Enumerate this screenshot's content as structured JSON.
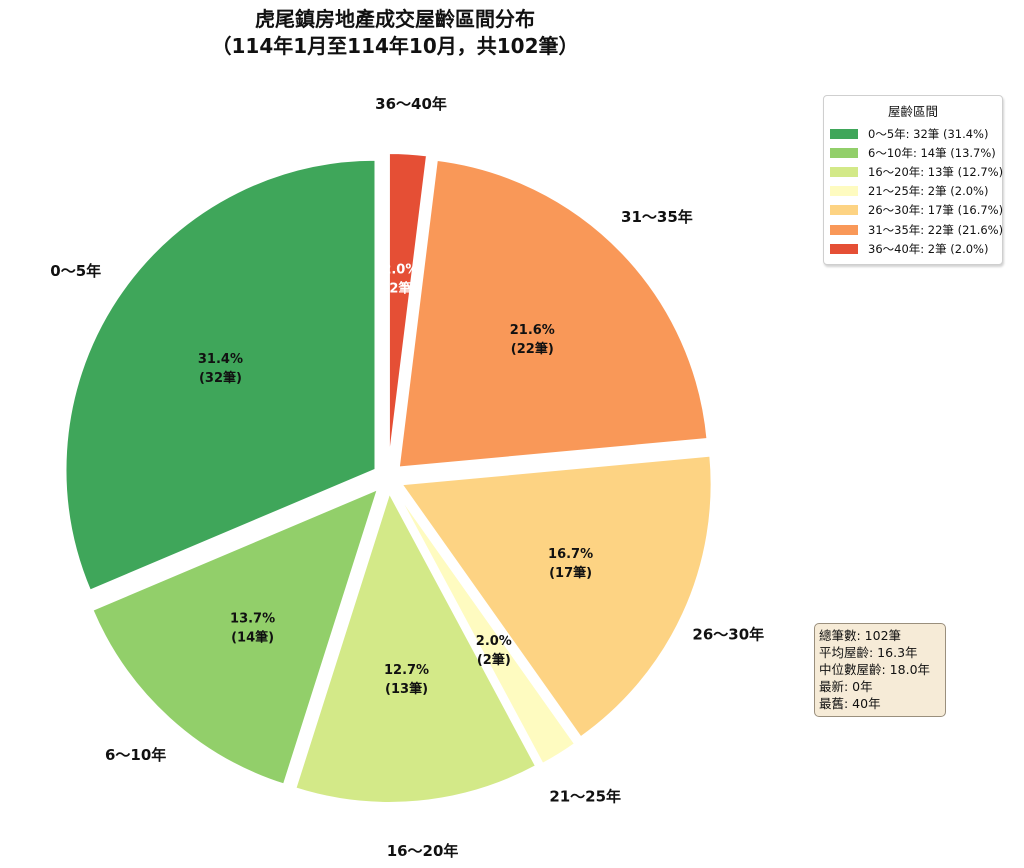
{
  "title": {
    "line1": "虎尾鎮房地產成交屋齡區間分布",
    "line2": "（114年1月至114年10月，共102筆）"
  },
  "legend": {
    "title": "屋齡區間",
    "items": [
      {
        "label": "0～5年: 32筆 (31.4%)",
        "color": "#3fa65a"
      },
      {
        "label": "6～10年: 14筆 (13.7%)",
        "color": "#92cf6a"
      },
      {
        "label": "16～20年: 13筆 (12.7%)",
        "color": "#d3e988"
      },
      {
        "label": "21～25年: 2筆 (2.0%)",
        "color": "#fefbc0"
      },
      {
        "label": "26～30年: 17筆 (16.7%)",
        "color": "#fdd383"
      },
      {
        "label": "31～35年: 22筆 (21.6%)",
        "color": "#f99858"
      },
      {
        "label": "36～40年: 2筆 (2.0%)",
        "color": "#e54f35"
      }
    ]
  },
  "stats": {
    "total": "總筆數: 102筆",
    "mean": "平均屋齡: 16.3年",
    "median": "中位數屋齡: 18.0年",
    "newest": "最新: 0年",
    "oldest": "最舊: 40年"
  },
  "chart_data": {
    "type": "pie",
    "title": "虎尾鎮房地產成交屋齡區間分布（114年1月至114年10月，共102筆）",
    "categories": [
      "0～5年",
      "6～10年",
      "16～20年",
      "21～25年",
      "26～30年",
      "31～35年",
      "36～40年"
    ],
    "values": [
      32,
      14,
      13,
      2,
      17,
      22,
      2
    ],
    "percentages": [
      31.4,
      13.7,
      12.7,
      2.0,
      16.7,
      21.6,
      2.0
    ],
    "slice_labels": [
      "31.4%\n(32筆)",
      "13.7%\n(14筆)",
      "12.7%\n(13筆)",
      "2.0%\n(2筆)",
      "16.7%\n(17筆)",
      "21.6%\n(22筆)",
      "2.0%\n(2筆)"
    ],
    "colors": [
      "#3fa65a",
      "#92cf6a",
      "#d3e988",
      "#fefbc0",
      "#fdd383",
      "#f99858",
      "#e54f35"
    ],
    "start_angle": 90,
    "counterclock": true,
    "exploded": true,
    "legend_title": "屋齡區間",
    "legend_position": "upper right",
    "total": 102
  }
}
